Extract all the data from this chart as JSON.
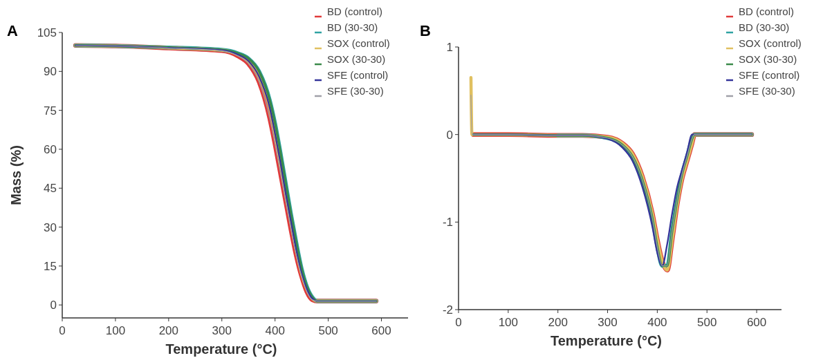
{
  "chart_data": [
    {
      "type": "line",
      "title": "A",
      "xlabel": "Temperature (°C)",
      "ylabel": "Mass (%)",
      "xlim": [
        0,
        650
      ],
      "xticks": [
        0,
        100,
        200,
        300,
        400,
        500,
        600
      ],
      "ylim": [
        -5,
        105
      ],
      "yticks": [
        0,
        15,
        30,
        45,
        60,
        75,
        90,
        105
      ],
      "legend": "top right",
      "grid": false,
      "x": [
        25,
        100,
        200,
        300,
        330,
        350,
        370,
        390,
        400,
        410,
        420,
        430,
        440,
        450,
        460,
        470,
        480,
        500,
        590
      ],
      "series": [
        {
          "name": "BD (control)",
          "color": "#e03a3a",
          "values": [
            100,
            99.8,
            99,
            98,
            96,
            93,
            86,
            72,
            62,
            51,
            40,
            29,
            19,
            11,
            5,
            2,
            1.5,
            1.5,
            1.5
          ]
        },
        {
          "name": "BD (30-30)",
          "color": "#2fa3a3",
          "values": [
            100,
            99.8,
            99.2,
            98.3,
            97,
            95,
            90,
            79,
            70,
            59,
            47,
            35,
            24,
            14,
            7,
            3,
            1.5,
            1.5,
            1.5
          ]
        },
        {
          "name": "SOX (control)",
          "color": "#e0c060",
          "values": [
            100,
            99.8,
            99.1,
            98.2,
            96.5,
            94,
            88,
            76,
            66,
            55,
            43,
            32,
            21,
            12,
            6,
            2.5,
            1.5,
            1.5,
            1.5
          ]
        },
        {
          "name": "SOX (30-30)",
          "color": "#3a8a4a",
          "values": [
            100,
            99.8,
            99.2,
            98.3,
            97,
            95,
            90,
            79,
            70,
            59,
            47,
            35,
            24,
            14,
            7,
            3,
            1.5,
            1.5,
            1.5
          ]
        },
        {
          "name": "SFE (control)",
          "color": "#34349a",
          "values": [
            100,
            99.8,
            99.1,
            98.2,
            96.5,
            94,
            88,
            76,
            66,
            55,
            43,
            32,
            21,
            12,
            6,
            2.5,
            1.5,
            1.5,
            1.5
          ]
        },
        {
          "name": "SFE (30-30)",
          "color": "#a0a0a8",
          "values": [
            100,
            99.8,
            99,
            98,
            96,
            93,
            86,
            72,
            62,
            51,
            40,
            29,
            19,
            11,
            5,
            2,
            1.5,
            1.5,
            1.5
          ]
        }
      ]
    },
    {
      "type": "line",
      "title": "B",
      "xlabel": "Temperature (°C)",
      "xlim": [
        0,
        650
      ],
      "xticks": [
        0,
        100,
        200,
        300,
        400,
        500,
        600
      ],
      "ylim": [
        -2,
        1
      ],
      "yticks": [
        -2,
        -1,
        0,
        1
      ],
      "legend": "top right",
      "grid": false,
      "x": [
        30,
        100,
        200,
        250,
        300,
        330,
        350,
        370,
        390,
        400,
        410,
        420,
        430,
        440,
        450,
        460,
        470,
        475,
        500,
        590
      ],
      "series": [
        {
          "name": "BD (control)",
          "color": "#e03a3a",
          "values": [
            0,
            0,
            -0.01,
            -0.01,
            -0.03,
            -0.1,
            -0.22,
            -0.48,
            -0.9,
            -1.2,
            -1.45,
            -1.55,
            -1.2,
            -0.8,
            -0.5,
            -0.3,
            -0.1,
            0,
            0,
            0
          ]
        },
        {
          "name": "BD (30-30)",
          "color": "#2fa3a3",
          "values": [
            null,
            null,
            -0.01,
            -0.01,
            -0.04,
            -0.12,
            -0.25,
            -0.52,
            -0.95,
            -1.28,
            -1.5,
            -1.5,
            -1.1,
            -0.75,
            -0.45,
            -0.25,
            -0.05,
            0,
            0,
            0
          ]
        },
        {
          "name": "SOX (control)",
          "color": "#e0c060",
          "x": [
            25,
            27,
            30,
            100,
            200,
            250,
            300,
            330,
            350,
            370,
            390,
            400,
            410,
            420,
            430,
            440,
            450,
            460,
            470,
            475,
            500,
            590
          ],
          "values": [
            0.65,
            0,
            0,
            0,
            -0.01,
            -0.01,
            -0.03,
            -0.1,
            -0.22,
            -0.48,
            -0.9,
            -1.2,
            -1.45,
            -1.55,
            -1.2,
            -0.8,
            -0.5,
            -0.3,
            -0.1,
            0,
            0,
            0
          ]
        },
        {
          "name": "SOX (30-30)",
          "color": "#3a8a4a",
          "values": [
            0,
            0,
            -0.01,
            -0.01,
            -0.04,
            -0.12,
            -0.25,
            -0.52,
            -0.95,
            -1.28,
            -1.5,
            -1.5,
            -1.1,
            -0.75,
            -0.45,
            -0.25,
            -0.05,
            0,
            0,
            0
          ]
        },
        {
          "name": "SFE (control)",
          "color": "#34349a",
          "values": [
            0,
            0,
            -0.01,
            -0.01,
            -0.05,
            -0.15,
            -0.3,
            -0.6,
            -1.05,
            -1.35,
            -1.5,
            -1.25,
            -0.9,
            -0.6,
            -0.4,
            -0.2,
            0,
            0,
            0,
            0
          ]
        },
        {
          "name": "SFE (30-30)",
          "color": "#a0a0a8",
          "x": [
            25,
            27,
            30,
            100,
            200,
            250,
            300,
            330,
            350,
            370,
            390,
            400,
            410,
            420,
            430,
            440,
            450,
            460,
            470,
            475,
            500,
            590
          ],
          "values": [
            0.45,
            0,
            0,
            0,
            -0.01,
            -0.01,
            -0.04,
            -0.12,
            -0.25,
            -0.52,
            -0.95,
            -1.28,
            -1.5,
            -1.5,
            -1.1,
            -0.75,
            -0.45,
            -0.25,
            -0.05,
            0,
            0,
            0
          ]
        }
      ]
    }
  ]
}
